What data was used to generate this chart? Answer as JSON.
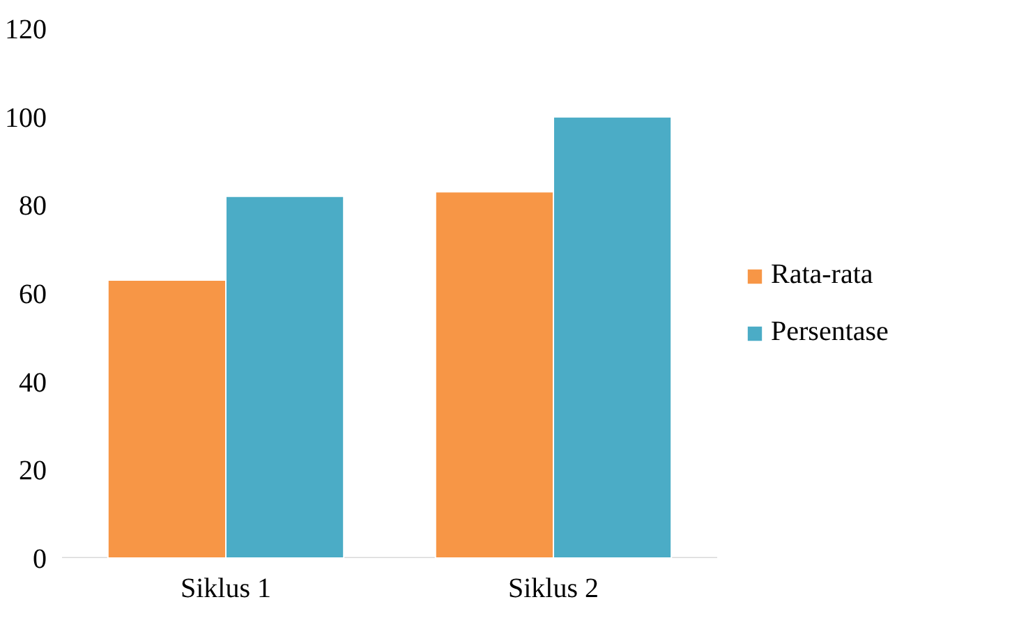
{
  "chart_data": {
    "type": "bar",
    "categories": [
      "Siklus 1",
      "Siklus 2"
    ],
    "series": [
      {
        "name": "Rata-rata",
        "color": "#f79646",
        "values": [
          63,
          83
        ]
      },
      {
        "name": "Persentase",
        "color": "#4bacc6",
        "values": [
          82,
          100
        ]
      }
    ],
    "ylim": [
      0,
      120
    ],
    "yticks": [
      0,
      20,
      40,
      60,
      80,
      100,
      120
    ],
    "grid": false,
    "legend": "right"
  }
}
